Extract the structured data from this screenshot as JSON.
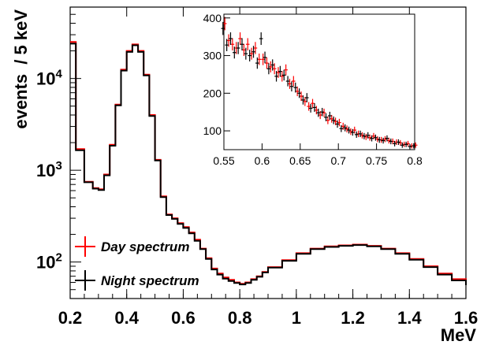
{
  "chart_data": [
    {
      "type": "line",
      "panel": "main",
      "xlabel": "MeV",
      "ylabel": "events  / 5 keV",
      "xlim": [
        0.2,
        1.6
      ],
      "ylim": [
        40,
        60000
      ],
      "log_y": true,
      "x_ticks": [
        "0.2",
        "0.4",
        "0.6",
        "0.8",
        "1",
        "1.2",
        "1.4",
        "1.6"
      ],
      "y_ticks": [
        {
          "base": "10",
          "exp": "2",
          "value": 100
        },
        {
          "base": "10",
          "exp": "3",
          "value": 1000
        },
        {
          "base": "10",
          "exp": "4",
          "value": 10000
        }
      ],
      "legend_position": "bottom-left",
      "x": [
        0.2,
        0.22,
        0.25,
        0.28,
        0.3,
        0.32,
        0.34,
        0.36,
        0.38,
        0.4,
        0.42,
        0.44,
        0.46,
        0.48,
        0.5,
        0.52,
        0.54,
        0.56,
        0.58,
        0.6,
        0.62,
        0.64,
        0.66,
        0.68,
        0.7,
        0.72,
        0.74,
        0.76,
        0.78,
        0.8,
        0.82,
        0.84,
        0.86,
        0.88,
        0.9,
        0.95,
        1.0,
        1.05,
        1.1,
        1.15,
        1.2,
        1.25,
        1.3,
        1.35,
        1.4,
        1.45,
        1.5,
        1.55,
        1.6
      ],
      "series": [
        {
          "name": "Day spectrum",
          "color": "#ff0000",
          "values": [
            25000,
            1700,
            750,
            640,
            620,
            900,
            1900,
            5200,
            12500,
            20000,
            23500,
            20000,
            11000,
            4000,
            1300,
            520,
            330,
            300,
            265,
            240,
            210,
            175,
            140,
            110,
            85,
            75,
            68,
            64,
            60,
            58,
            60,
            65,
            70,
            78,
            88,
            105,
            125,
            140,
            148,
            152,
            155,
            150,
            140,
            125,
            108,
            90,
            75,
            65,
            58
          ]
        },
        {
          "name": "Night spectrum",
          "color": "#000000",
          "values": [
            24000,
            1650,
            740,
            630,
            610,
            880,
            1850,
            5100,
            12200,
            19500,
            23000,
            19500,
            10800,
            3900,
            1280,
            510,
            325,
            295,
            260,
            235,
            205,
            170,
            138,
            108,
            83,
            73,
            66,
            62,
            59,
            57,
            59,
            64,
            69,
            77,
            87,
            103,
            123,
            138,
            146,
            150,
            153,
            148,
            138,
            123,
            106,
            88,
            73,
            63,
            56
          ]
        }
      ]
    },
    {
      "type": "scatter",
      "panel": "inset",
      "xlim": [
        0.55,
        0.8
      ],
      "ylim": [
        50,
        410
      ],
      "x_ticks": [
        "0.55",
        "0.6",
        "0.65",
        "0.7",
        "0.75",
        "0.8"
      ],
      "y_ticks": [
        "100",
        "200",
        "300",
        "400"
      ],
      "x": [
        0.55,
        0.555,
        0.56,
        0.565,
        0.57,
        0.575,
        0.58,
        0.585,
        0.59,
        0.595,
        0.6,
        0.605,
        0.61,
        0.615,
        0.62,
        0.625,
        0.63,
        0.635,
        0.64,
        0.645,
        0.65,
        0.655,
        0.66,
        0.665,
        0.67,
        0.675,
        0.68,
        0.685,
        0.69,
        0.695,
        0.7,
        0.705,
        0.71,
        0.715,
        0.72,
        0.725,
        0.73,
        0.735,
        0.74,
        0.745,
        0.75,
        0.755,
        0.76,
        0.765,
        0.77,
        0.775,
        0.78,
        0.785,
        0.79,
        0.795,
        0.8
      ],
      "series": [
        {
          "name": "Day spectrum",
          "color": "#ff0000",
          "values": [
            385,
            340,
            330,
            320,
            345,
            315,
            330,
            305,
            320,
            290,
            290,
            280,
            270,
            265,
            255,
            245,
            262,
            225,
            232,
            205,
            192,
            178,
            165,
            173,
            155,
            142,
            148,
            128,
            132,
            125,
            122,
            112,
            105,
            98,
            102,
            92,
            88,
            84,
            82,
            86,
            78,
            76,
            78,
            74,
            72,
            70,
            68,
            64,
            66,
            60,
            62
          ]
        },
        {
          "name": "Night spectrum",
          "color": "#000000",
          "values": [
            372,
            328,
            345,
            308,
            320,
            330,
            305,
            300,
            310,
            280,
            345,
            295,
            265,
            275,
            245,
            258,
            248,
            232,
            218,
            215,
            200,
            182,
            188,
            160,
            162,
            148,
            150,
            136,
            140,
            128,
            118,
            106,
            108,
            102,
            96,
            90,
            92,
            86,
            88,
            80,
            82,
            76,
            74,
            80,
            72,
            66,
            70,
            62,
            64,
            58,
            60
          ]
        }
      ]
    }
  ]
}
